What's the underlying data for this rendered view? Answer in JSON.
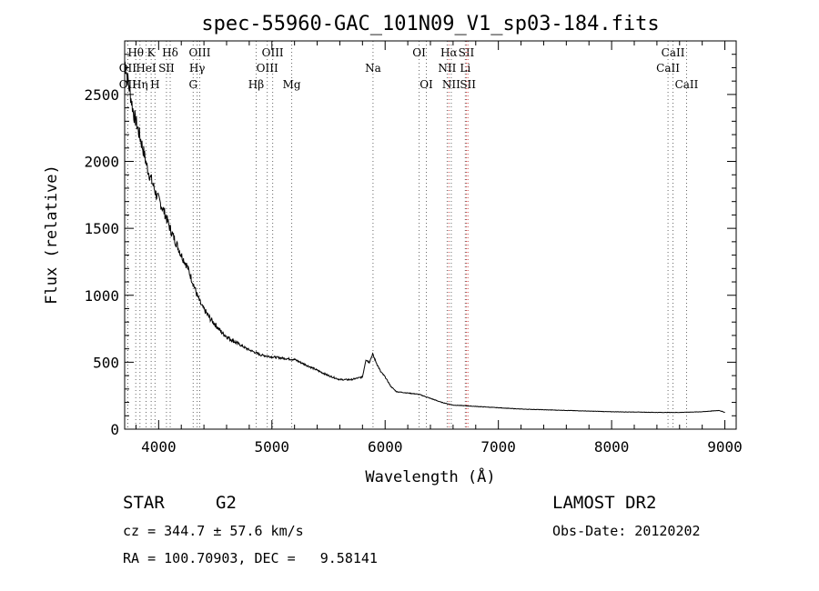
{
  "chart_data": {
    "type": "line",
    "title": "spec-55960-GAC_101N09_V1_sp03-184.fits",
    "xlabel": "Wavelength (Å)",
    "ylabel": "Flux (relative)",
    "xlim": [
      3700,
      9100
    ],
    "ylim": [
      0,
      2900
    ],
    "xticks": [
      4000,
      5000,
      6000,
      7000,
      8000,
      9000
    ],
    "yticks": [
      0,
      500,
      1000,
      1500,
      2000,
      2500
    ],
    "grid": false,
    "series": [
      {
        "values_x": [
          3700,
          3720,
          3740,
          3760,
          3780,
          3800,
          3830,
          3860,
          3900,
          3940,
          3980,
          4020,
          4060,
          4100,
          4150,
          4200,
          4250,
          4300,
          4340,
          4380,
          4420,
          4460,
          4500,
          4560,
          4620,
          4700,
          4780,
          4860,
          4900,
          5000,
          5100,
          5200,
          5300,
          5400,
          5500,
          5600,
          5700,
          5800,
          5830,
          5860,
          5890,
          5920,
          5960,
          6000,
          6050,
          6100,
          6200,
          6300,
          6400,
          6500,
          6600,
          6800,
          7000,
          7200,
          7400,
          7600,
          7800,
          8000,
          8200,
          8400,
          8600,
          8800,
          8950,
          9000
        ],
        "values_y": [
          2750,
          2650,
          2550,
          2450,
          2350,
          2300,
          2200,
          2100,
          1950,
          1850,
          1750,
          1680,
          1600,
          1500,
          1400,
          1300,
          1220,
          1100,
          1000,
          920,
          870,
          820,
          780,
          720,
          680,
          640,
          600,
          570,
          555,
          540,
          530,
          520,
          480,
          440,
          400,
          370,
          370,
          390,
          520,
          500,
          560,
          500,
          430,
          390,
          320,
          280,
          270,
          260,
          230,
          200,
          180,
          170,
          160,
          150,
          145,
          140,
          135,
          130,
          128,
          125,
          125,
          130,
          140,
          125
        ]
      }
    ],
    "spectral_lines": [
      {
        "label": "Hθ",
        "x": 3798,
        "row": 1
      },
      {
        "label": "K",
        "x": 3934,
        "row": 1
      },
      {
        "label": "Hδ",
        "x": 4102,
        "row": 1
      },
      {
        "label": "OIII",
        "x": 4363,
        "row": 1
      },
      {
        "label": "OIII",
        "x": 5007,
        "row": 1
      },
      {
        "label": "OI",
        "x": 6300,
        "row": 1
      },
      {
        "label": "Hα",
        "x": 6563,
        "row": 1
      },
      {
        "label": "SII",
        "x": 6717,
        "row": 1
      },
      {
        "label": "CaII",
        "x": 8542,
        "row": 1
      },
      {
        "label": "OII",
        "x": 3727,
        "row": 2
      },
      {
        "label": "HeI",
        "x": 3889,
        "row": 2
      },
      {
        "label": "SII",
        "x": 4069,
        "row": 2
      },
      {
        "label": "Hγ",
        "x": 4340,
        "row": 2
      },
      {
        "label": "OIII",
        "x": 4959,
        "row": 2
      },
      {
        "label": "Na",
        "x": 5893,
        "row": 2
      },
      {
        "label": "NII",
        "x": 6548,
        "row": 2
      },
      {
        "label": "Li",
        "x": 6708,
        "row": 2
      },
      {
        "label": "CaII",
        "x": 8498,
        "row": 2
      },
      {
        "label": "OII",
        "x": 3727,
        "row": 3
      },
      {
        "label": "Hη",
        "x": 3835,
        "row": 3
      },
      {
        "label": "H",
        "x": 3968,
        "row": 3
      },
      {
        "label": "G",
        "x": 4305,
        "row": 3
      },
      {
        "label": "Hβ",
        "x": 4861,
        "row": 3
      },
      {
        "label": "Mg",
        "x": 5175,
        "row": 3
      },
      {
        "label": "OI",
        "x": 6364,
        "row": 3
      },
      {
        "label": "NII",
        "x": 6584,
        "row": 3
      },
      {
        "label": "SII",
        "x": 6731,
        "row": 3
      },
      {
        "label": "CaII",
        "x": 8662,
        "row": 3
      }
    ]
  },
  "info": {
    "class": "STAR",
    "subclass": "G2",
    "cz": "cz = 344.7 ± 57.6 km/s",
    "radec": "RA = 100.70903, DEC =   9.58141",
    "survey": "LAMOST DR2",
    "obs_date": "Obs-Date: 20120202"
  }
}
